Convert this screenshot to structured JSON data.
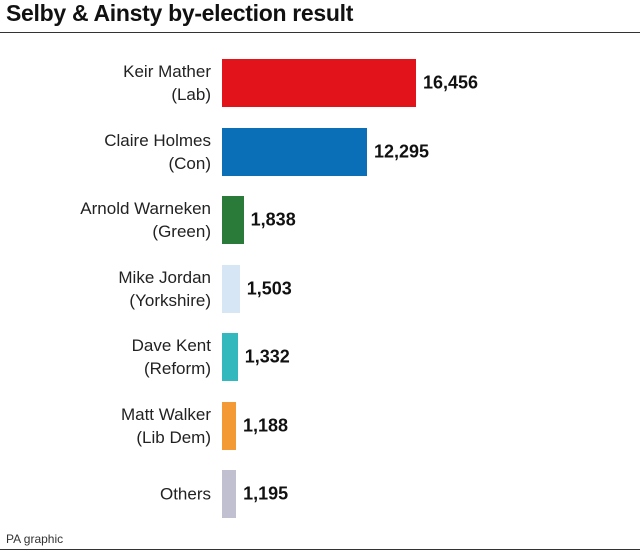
{
  "chart_data": {
    "type": "barh",
    "title": "Selby & Ainsty by-election result",
    "categories": [
      "Keir Mather\n(Lab)",
      "Claire Holmes\n(Con)",
      "Arnold Warneken\n(Green)",
      "Mike Jordan\n(Yorkshire)",
      "Dave Kent\n(Reform)",
      "Matt Walker\n(Lib Dem)",
      "Others"
    ],
    "values": [
      16456,
      12295,
      1838,
      1503,
      1332,
      1188,
      1195
    ],
    "value_labels": [
      "16,456",
      "12,295",
      "1,838",
      "1,503",
      "1,332",
      "1,188",
      "1,195"
    ],
    "colors": [
      "#e3131b",
      "#0b6fb8",
      "#2a7a3a",
      "#d6e6f5",
      "#33b8bd",
      "#f39a35",
      "#c1c0d0"
    ],
    "source": "PA graphic"
  }
}
